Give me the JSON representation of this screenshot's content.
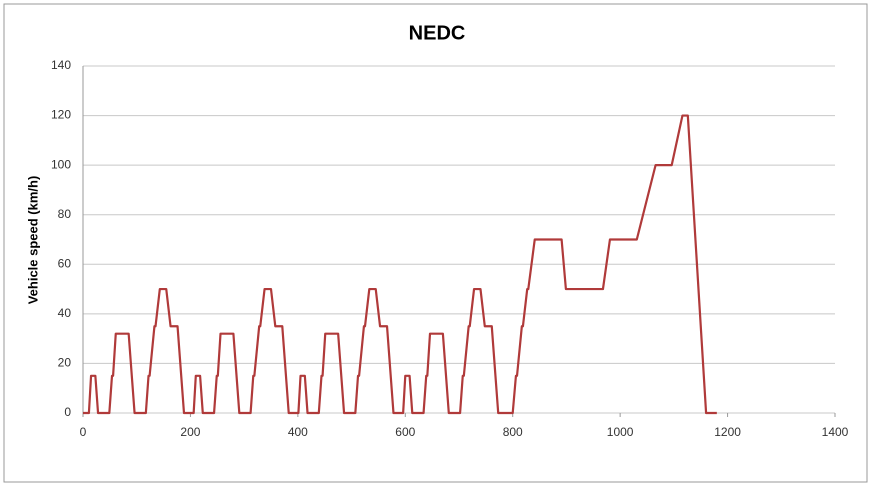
{
  "chart_data": {
    "type": "line",
    "title": "NEDC",
    "ylabel": "Vehicle speed (km/h)",
    "x": [
      0,
      11,
      15,
      23,
      28,
      49,
      54,
      56,
      61,
      85,
      96,
      117,
      122,
      124,
      133,
      135,
      143,
      155,
      163,
      176,
      188,
      195,
      206,
      210,
      218,
      223,
      244,
      249,
      251,
      256,
      280,
      291,
      312,
      317,
      319,
      328,
      330,
      338,
      350,
      358,
      371,
      383,
      390,
      401,
      405,
      413,
      418,
      439,
      444,
      446,
      451,
      475,
      486,
      507,
      512,
      514,
      523,
      525,
      533,
      545,
      553,
      566,
      578,
      585,
      596,
      600,
      608,
      613,
      634,
      639,
      641,
      646,
      670,
      681,
      702,
      707,
      709,
      718,
      720,
      728,
      740,
      748,
      761,
      773,
      780,
      800,
      806,
      808,
      817,
      819,
      827,
      829,
      841,
      891,
      899,
      968,
      981,
      1031,
      1066,
      1096,
      1116,
      1126,
      1160,
      1180
    ],
    "series": [
      {
        "name": "Vehicle speed",
        "color": "#b03a3a",
        "values": [
          0,
          0,
          15,
          15,
          0,
          0,
          15,
          15,
          32,
          32,
          0,
          0,
          15,
          15,
          35,
          35,
          50,
          50,
          35,
          35,
          0,
          0,
          0,
          15,
          15,
          0,
          0,
          15,
          15,
          32,
          32,
          0,
          0,
          15,
          15,
          35,
          35,
          50,
          50,
          35,
          35,
          0,
          0,
          0,
          15,
          15,
          0,
          0,
          15,
          15,
          32,
          32,
          0,
          0,
          15,
          15,
          35,
          35,
          50,
          50,
          35,
          35,
          0,
          0,
          0,
          15,
          15,
          0,
          0,
          15,
          15,
          32,
          32,
          0,
          0,
          15,
          15,
          35,
          35,
          50,
          50,
          35,
          35,
          0,
          0,
          0,
          15,
          15,
          35,
          35,
          50,
          50,
          70,
          70,
          50,
          50,
          70,
          70,
          100,
          100,
          120,
          120,
          0,
          0
        ]
      }
    ],
    "xlim": [
      0,
      1400
    ],
    "xticks": [
      0,
      200,
      400,
      600,
      800,
      1000,
      1200,
      1400
    ],
    "ylim": [
      0,
      140
    ],
    "yticks": [
      0,
      20,
      40,
      60,
      80,
      100,
      120,
      140
    ],
    "grid": true
  }
}
